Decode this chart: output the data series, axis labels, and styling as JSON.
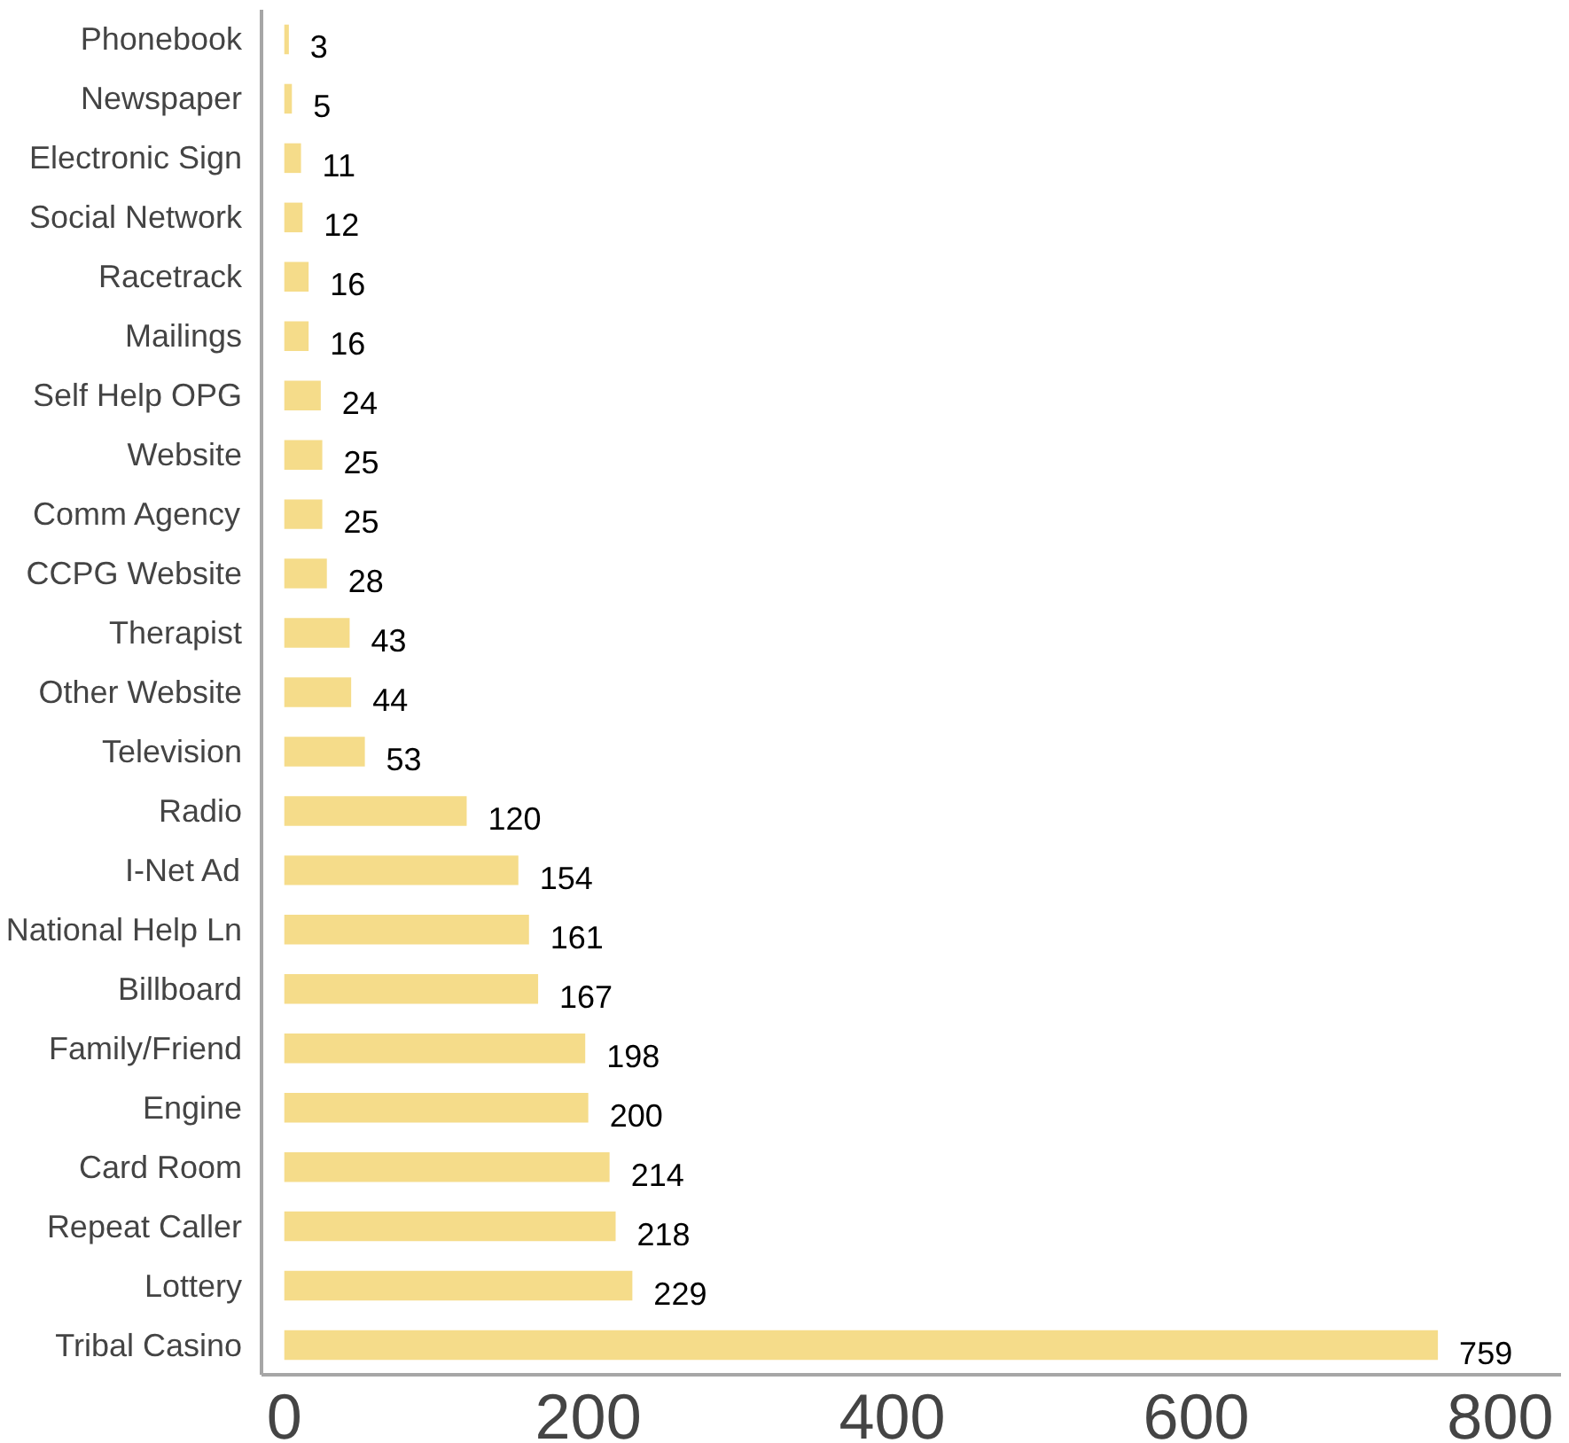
{
  "chart_data": {
    "type": "bar",
    "orientation": "horizontal",
    "categories": [
      "Phonebook",
      "Newspaper",
      "Electronic Sign",
      "Social Network",
      "Racetrack",
      "Mailings",
      "Self Help OPG",
      "Website",
      "Comm Agency",
      "CCPG Website",
      "Therapist",
      "Other Website",
      "Television",
      "Radio",
      "I-Net Ad",
      "National Help Ln",
      "Billboard",
      "Family/Friend",
      "Engine",
      "Card Room",
      "Repeat Caller",
      "Lottery",
      "Tribal Casino"
    ],
    "values": [
      3,
      5,
      11,
      12,
      16,
      16,
      24,
      25,
      25,
      28,
      43,
      44,
      53,
      120,
      154,
      161,
      167,
      198,
      200,
      214,
      218,
      229,
      759
    ],
    "color": "#f5dc8a",
    "xlim": [
      -15,
      840
    ],
    "xticks": [
      0,
      200,
      400,
      600,
      800
    ],
    "data_labels": true,
    "grid": false
  }
}
